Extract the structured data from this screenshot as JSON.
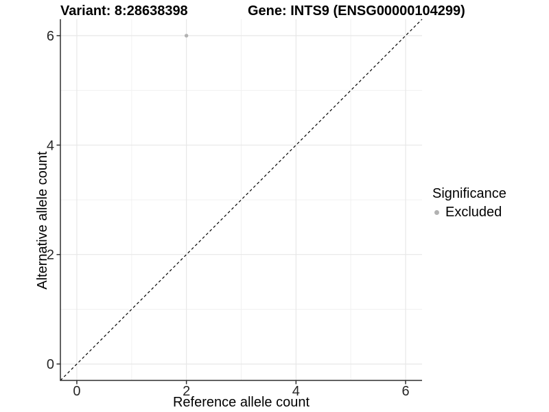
{
  "figure": {
    "title_variant": "Variant: 8:28638398",
    "title_gene": "Gene: INTS9 (ENSG00000104299)",
    "background": "#ffffff"
  },
  "legend": {
    "title": "Significance",
    "position": "right",
    "items": [
      {
        "label": "Excluded",
        "marker_color": "#b2b2b2"
      }
    ]
  },
  "chart_data": {
    "type": "scatter",
    "title_left": "Variant: 8:28638398",
    "title_right": "Gene: INTS9 (ENSG00000104299)",
    "xlabel": "Reference allele count",
    "ylabel": "Alternative allele count",
    "points": [
      {
        "x": 2,
        "y": 6,
        "series": "Excluded"
      }
    ],
    "series": [
      {
        "name": "Excluded",
        "color": "#b2b2b2"
      }
    ],
    "xticks": [
      0,
      2,
      4,
      6
    ],
    "yticks": [
      0,
      2,
      4,
      6
    ],
    "minor_xticks": [
      1,
      3,
      5
    ],
    "minor_yticks": [
      1,
      3,
      5
    ],
    "xlim": [
      -0.3,
      6.3
    ],
    "ylim": [
      -0.3,
      6.3
    ],
    "grid": "major+minor",
    "legend_position": "right",
    "reference_line": {
      "slope": 1,
      "intercept": 0,
      "style": "dashed",
      "color": "#000000"
    },
    "colors": {
      "grid_major": "#e7e7e7",
      "grid_minor": "#f1f1f1",
      "axis": "#2e2e2e",
      "tick_text": "#262626",
      "point": "#b2b2b2",
      "reference_line": "#000000"
    }
  }
}
